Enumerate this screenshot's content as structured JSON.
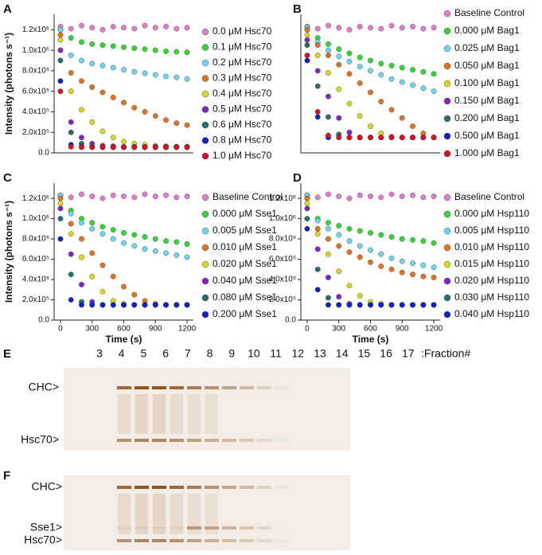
{
  "chart_data": [
    {
      "type": "scatter",
      "panel": "A",
      "ylabel": "Intensity (photons s⁻¹)",
      "xlim": [
        -60,
        1260
      ],
      "ylim": [
        0,
        1350000
      ],
      "yticks": [
        {
          "value": 0,
          "label": "0.0"
        },
        {
          "value": 200000,
          "label": "2.0x10⁵"
        },
        {
          "value": 400000,
          "label": "4.0x10⁵"
        },
        {
          "value": 600000,
          "label": "6.0x10⁵"
        },
        {
          "value": 800000,
          "label": "8.0x10⁵"
        },
        {
          "value": 1000000,
          "label": "1.0x10⁶"
        },
        {
          "value": 1200000,
          "label": "1.2x10⁶"
        }
      ],
      "x": [
        0,
        100,
        200,
        300,
        400,
        500,
        600,
        700,
        800,
        900,
        1000,
        1100,
        1200
      ],
      "series": [
        {
          "name": "0.0 μM Hsc70",
          "color": "#e47ccc",
          "values": [
            1230000,
            1210000,
            1240000,
            1220000,
            1200000,
            1230000,
            1220000,
            1210000,
            1240000,
            1220000,
            1230000,
            1210000,
            1220000
          ]
        },
        {
          "name": "0.1 μM Hsc70",
          "color": "#33d633",
          "values": [
            1200000,
            1120000,
            1080000,
            1060000,
            1050000,
            1040000,
            1030000,
            1020000,
            1010000,
            1000000,
            990000,
            985000,
            980000
          ]
        },
        {
          "name": "0.2 μM Hsc70",
          "color": "#6fd6ee",
          "values": [
            1200000,
            950000,
            900000,
            870000,
            850000,
            830000,
            810000,
            790000,
            775000,
            760000,
            745000,
            735000,
            720000
          ]
        },
        {
          "name": "0.3 μM Hsc70",
          "color": "#e07422",
          "values": [
            1150000,
            780000,
            700000,
            640000,
            590000,
            540000,
            490000,
            440000,
            400000,
            360000,
            320000,
            290000,
            270000
          ]
        },
        {
          "name": "0.4 μM Hsc70",
          "color": "#d9d925",
          "values": [
            1100000,
            600000,
            420000,
            300000,
            210000,
            150000,
            110000,
            90000,
            80000,
            70000,
            65000,
            60000,
            60000
          ]
        },
        {
          "name": "0.5 μM Hsc70",
          "color": "#8424c4",
          "values": [
            1000000,
            300000,
            150000,
            90000,
            70000,
            65000,
            60000,
            60000,
            60000,
            60000,
            60000,
            60000,
            60000
          ]
        },
        {
          "name": "0.6 μM Hsc70",
          "color": "#22706f",
          "values": [
            900000,
            200000,
            90000,
            60000,
            55000,
            55000,
            55000,
            55000,
            55000,
            55000,
            55000,
            55000,
            55000
          ]
        },
        {
          "name": "0.8 μM Hsc70",
          "color": "#1422c4",
          "values": [
            700000,
            80000,
            60000,
            55000,
            55000,
            55000,
            55000,
            55000,
            55000,
            55000,
            55000,
            55000,
            55000
          ]
        },
        {
          "name": "1.0 μM Hsc70",
          "color": "#d41424",
          "values": [
            600000,
            60000,
            55000,
            55000,
            55000,
            55000,
            55000,
            55000,
            55000,
            55000,
            55000,
            55000,
            55000
          ]
        }
      ]
    },
    {
      "type": "scatter",
      "panel": "B",
      "xlim": [
        -60,
        1260
      ],
      "ylim": [
        0,
        1350000
      ],
      "x": [
        0,
        100,
        200,
        300,
        400,
        500,
        600,
        700,
        800,
        900,
        1000,
        1100,
        1200
      ],
      "series": [
        {
          "name": "Baseline Control",
          "color": "#e47ccc",
          "values": [
            1230000,
            1210000,
            1240000,
            1220000,
            1200000,
            1230000,
            1220000,
            1210000,
            1240000,
            1220000,
            1230000,
            1210000,
            1220000
          ]
        },
        {
          "name": "0.000 μM Bag1",
          "color": "#33d633",
          "values": [
            1220000,
            1120000,
            1060000,
            1010000,
            970000,
            930000,
            900000,
            870000,
            850000,
            830000,
            810000,
            790000,
            770000
          ]
        },
        {
          "name": "0.025 μM Bag1",
          "color": "#6fd6ee",
          "values": [
            1220000,
            1080000,
            1000000,
            940000,
            890000,
            840000,
            800000,
            760000,
            720000,
            690000,
            660000,
            630000,
            600000
          ]
        },
        {
          "name": "0.050 μM Bag1",
          "color": "#e07422",
          "values": [
            1200000,
            1050000,
            950000,
            860000,
            770000,
            680000,
            590000,
            500000,
            420000,
            340000,
            260000,
            190000,
            150000
          ]
        },
        {
          "name": "0.100 μM Bag1",
          "color": "#d9d925",
          "values": [
            1150000,
            950000,
            780000,
            620000,
            480000,
            360000,
            260000,
            190000,
            160000,
            150000,
            150000,
            150000,
            150000
          ]
        },
        {
          "name": "0.150 μM Bag1",
          "color": "#8424c4",
          "values": [
            1100000,
            800000,
            550000,
            340000,
            200000,
            150000,
            150000,
            150000,
            150000,
            150000,
            150000,
            150000,
            150000
          ]
        },
        {
          "name": "0.200 μM Bag1",
          "color": "#22706f",
          "values": [
            1050000,
            650000,
            350000,
            180000,
            150000,
            150000,
            150000,
            150000,
            150000,
            150000,
            150000,
            150000,
            150000
          ]
        },
        {
          "name": "0.500 μM Bag1",
          "color": "#1422c4",
          "values": [
            900000,
            350000,
            150000,
            150000,
            150000,
            150000,
            150000,
            150000,
            150000,
            150000,
            150000,
            150000,
            150000
          ]
        },
        {
          "name": "1.000 μM Bag1",
          "color": "#d41424",
          "values": [
            950000,
            400000,
            170000,
            150000,
            150000,
            150000,
            150000,
            150000,
            150000,
            150000,
            150000,
            150000,
            150000
          ]
        }
      ]
    },
    {
      "type": "scatter",
      "panel": "C",
      "ylabel": "Intensity (photons s⁻¹)",
      "xlabel": "Time (s)",
      "xlim": [
        -60,
        1260
      ],
      "ylim": [
        0,
        1350000
      ],
      "xticks": [
        0,
        300,
        600,
        900,
        1200
      ],
      "yticks": [
        {
          "value": 0,
          "label": "0.0"
        },
        {
          "value": 200000,
          "label": "2.0x10⁵"
        },
        {
          "value": 400000,
          "label": "4.0x10⁵"
        },
        {
          "value": 600000,
          "label": "6.0x10⁵"
        },
        {
          "value": 800000,
          "label": "8.0x10⁵"
        },
        {
          "value": 1000000,
          "label": "1.0x10⁶"
        },
        {
          "value": 1200000,
          "label": "1.2x10⁶"
        }
      ],
      "x": [
        0,
        100,
        200,
        300,
        400,
        500,
        600,
        700,
        800,
        900,
        1000,
        1100,
        1200
      ],
      "series": [
        {
          "name": "Baseline Control",
          "color": "#e47ccc",
          "values": [
            1230000,
            1210000,
            1240000,
            1220000,
            1200000,
            1230000,
            1220000,
            1210000,
            1240000,
            1220000,
            1230000,
            1210000,
            1220000
          ]
        },
        {
          "name": "0.000 μM Sse1",
          "color": "#33d633",
          "values": [
            1230000,
            1080000,
            1000000,
            960000,
            920000,
            890000,
            860000,
            840000,
            820000,
            800000,
            780000,
            770000,
            750000
          ]
        },
        {
          "name": "0.005 μM Sse1",
          "color": "#6fd6ee",
          "values": [
            1230000,
            1050000,
            960000,
            900000,
            850000,
            800000,
            760000,
            730000,
            700000,
            680000,
            660000,
            640000,
            620000
          ]
        },
        {
          "name": "0.010 μM Sse1",
          "color": "#e07422",
          "values": [
            1200000,
            950000,
            800000,
            660000,
            540000,
            430000,
            330000,
            250000,
            190000,
            160000,
            150000,
            150000,
            150000
          ]
        },
        {
          "name": "0.020 μM Sse1",
          "color": "#d9d925",
          "values": [
            1150000,
            850000,
            620000,
            430000,
            280000,
            190000,
            160000,
            150000,
            150000,
            150000,
            150000,
            150000,
            150000
          ]
        },
        {
          "name": "0.040 μM Sse1",
          "color": "#8424c4",
          "values": [
            1100000,
            650000,
            350000,
            180000,
            150000,
            150000,
            150000,
            150000,
            150000,
            150000,
            150000,
            150000,
            150000
          ]
        },
        {
          "name": "0.080 μM Sse1",
          "color": "#22706f",
          "values": [
            1000000,
            450000,
            180000,
            150000,
            150000,
            150000,
            150000,
            150000,
            150000,
            150000,
            150000,
            150000,
            150000
          ]
        },
        {
          "name": "0.200 μM Sse1",
          "color": "#1422c4",
          "values": [
            800000,
            200000,
            150000,
            150000,
            150000,
            150000,
            150000,
            150000,
            150000,
            150000,
            150000,
            150000,
            150000
          ]
        }
      ]
    },
    {
      "type": "scatter",
      "panel": "D",
      "xlabel": "Time (s)",
      "xlim": [
        -60,
        1260
      ],
      "ylim": [
        0,
        1350000
      ],
      "xticks": [
        0,
        300,
        600,
        900,
        1200
      ],
      "yticks": [
        {
          "value": 0,
          "label": "0.0"
        },
        {
          "value": 200000,
          "label": "2.0x10⁵"
        },
        {
          "value": 400000,
          "label": "4.0x10⁵"
        },
        {
          "value": 600000,
          "label": "6.0x10⁵"
        },
        {
          "value": 800000,
          "label": "8.0x10⁵"
        },
        {
          "value": 1000000,
          "label": "1.0x10⁶"
        },
        {
          "value": 1200000,
          "label": "1.2x10⁶"
        }
      ],
      "x": [
        0,
        100,
        200,
        300,
        400,
        500,
        600,
        700,
        800,
        900,
        1000,
        1100,
        1200
      ],
      "series": [
        {
          "name": "Baseline Control",
          "color": "#e47ccc",
          "values": [
            1230000,
            1210000,
            1240000,
            1220000,
            1200000,
            1230000,
            1220000,
            1210000,
            1240000,
            1220000,
            1230000,
            1210000,
            1220000
          ]
        },
        {
          "name": "0.000 μM Hsp110",
          "color": "#33d633",
          "values": [
            1230000,
            1000000,
            960000,
            930000,
            900000,
            880000,
            860000,
            840000,
            820000,
            800000,
            790000,
            780000,
            760000
          ]
        },
        {
          "name": "0.005 μM Hsp110",
          "color": "#6fd6ee",
          "values": [
            1230000,
            980000,
            900000,
            840000,
            780000,
            730000,
            690000,
            650000,
            610000,
            580000,
            560000,
            540000,
            520000
          ]
        },
        {
          "name": "0.010 μM Hsp110",
          "color": "#e07422",
          "values": [
            1200000,
            900000,
            800000,
            730000,
            670000,
            620000,
            570000,
            530000,
            500000,
            470000,
            450000,
            430000,
            420000
          ]
        },
        {
          "name": "0.015 μM Hsp110",
          "color": "#d9d925",
          "values": [
            1150000,
            850000,
            650000,
            480000,
            340000,
            240000,
            180000,
            160000,
            150000,
            150000,
            150000,
            150000,
            150000
          ]
        },
        {
          "name": "0.020 μM Hsp110",
          "color": "#8424c4",
          "values": [
            1100000,
            700000,
            420000,
            230000,
            160000,
            150000,
            150000,
            150000,
            150000,
            150000,
            150000,
            150000,
            150000
          ]
        },
        {
          "name": "0.030 μM Hsp110",
          "color": "#22706f",
          "values": [
            1000000,
            500000,
            220000,
            150000,
            150000,
            150000,
            150000,
            150000,
            150000,
            150000,
            150000,
            150000,
            150000
          ]
        },
        {
          "name": "0.040 μM Hsp110",
          "color": "#1422c4",
          "values": [
            900000,
            300000,
            150000,
            150000,
            150000,
            150000,
            150000,
            150000,
            150000,
            150000,
            150000,
            150000,
            150000
          ]
        }
      ]
    }
  ],
  "gels": [
    {
      "panel": "E",
      "lanes": [
        "3",
        "4",
        "5",
        "6",
        "7",
        "8",
        "9",
        "10",
        "11",
        "12",
        "13",
        "14",
        "15",
        "16",
        "17"
      ],
      "lanes_suffix": ":Fraction#",
      "bands": [
        "CHC>",
        "Hsc70>"
      ]
    },
    {
      "panel": "F",
      "bands": [
        "CHC>",
        "Sse1>",
        "Hsc70>"
      ]
    }
  ]
}
